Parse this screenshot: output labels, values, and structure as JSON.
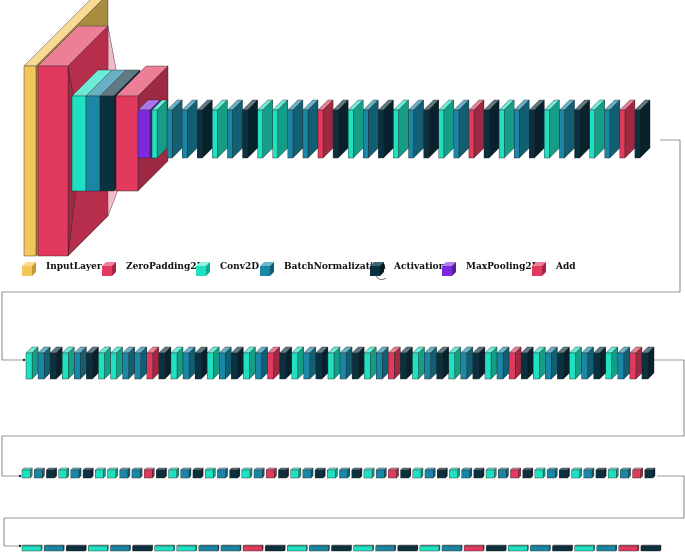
{
  "colors": {
    "InputLayer": "#F2C65A",
    "ZeroPadding2D": "#E23A5E",
    "Conv2D": "#1FE0C0",
    "BatchNormalization": "#1A87A6",
    "Activation": "#0B3140",
    "MaxPooling2D": "#7B2BDB",
    "Add": "#E23A5E"
  },
  "legend": {
    "items": [
      {
        "label": "InputLayer",
        "type": "InputLayer"
      },
      {
        "label": "ZeroPadding2D",
        "type": "ZeroPadding2D"
      },
      {
        "label": "Conv2D",
        "type": "Conv2D"
      },
      {
        "label": "BatchNormalization",
        "type": "BatchNormalization"
      },
      {
        "label": "Activation",
        "type": "Activation"
      },
      {
        "label": "MaxPooling2D",
        "type": "MaxPooling2D"
      },
      {
        "label": "Add",
        "type": "Add"
      }
    ]
  },
  "rows": [
    {
      "name": "row-1",
      "pattern": [
        "Conv2D",
        "BatchNormalization",
        "BatchNormalization",
        "Activation",
        "Conv2D",
        "BatchNormalization",
        "Activation",
        "Conv2D",
        "Conv2D",
        "BatchNormalization",
        "BatchNormalization",
        "Add",
        "Activation",
        "Conv2D",
        "BatchNormalization",
        "Activation",
        "Conv2D",
        "BatchNormalization",
        "Activation",
        "Conv2D",
        "BatchNormalization",
        "Add",
        "Activation",
        "Conv2D",
        "BatchNormalization",
        "Activation",
        "Conv2D",
        "BatchNormalization",
        "Activation",
        "Conv2D",
        "BatchNormalization",
        "Add",
        "Activation"
      ]
    },
    {
      "name": "row-2",
      "pattern": [
        "Conv2D",
        "BatchNormalization",
        "Activation",
        "Conv2D",
        "BatchNormalization",
        "Activation",
        "Conv2D",
        "Conv2D",
        "BatchNormalization",
        "BatchNormalization",
        "Add",
        "Activation",
        "Conv2D",
        "BatchNormalization",
        "Activation",
        "Conv2D",
        "BatchNormalization",
        "Activation",
        "Conv2D",
        "BatchNormalization",
        "Add",
        "Activation",
        "Conv2D",
        "BatchNormalization",
        "Activation",
        "Conv2D",
        "BatchNormalization",
        "Activation",
        "Conv2D",
        "BatchNormalization",
        "Add",
        "Activation",
        "Conv2D",
        "BatchNormalization",
        "Activation",
        "Conv2D",
        "BatchNormalization",
        "Activation",
        "Conv2D",
        "BatchNormalization",
        "Add",
        "Activation",
        "Conv2D",
        "BatchNormalization",
        "Activation",
        "Conv2D",
        "BatchNormalization",
        "Activation",
        "Conv2D",
        "BatchNormalization",
        "Add",
        "Activation"
      ]
    },
    {
      "name": "row-3",
      "pattern": [
        "Conv2D",
        "BatchNormalization",
        "Activation",
        "Conv2D",
        "BatchNormalization",
        "Activation",
        "Conv2D",
        "Conv2D",
        "BatchNormalization",
        "BatchNormalization",
        "Add",
        "Activation",
        "Conv2D",
        "BatchNormalization",
        "Activation",
        "Conv2D",
        "BatchNormalization",
        "Activation",
        "Conv2D",
        "BatchNormalization",
        "Add",
        "Activation",
        "Conv2D",
        "BatchNormalization",
        "Activation",
        "Conv2D",
        "BatchNormalization",
        "Activation",
        "Conv2D",
        "BatchNormalization",
        "Add",
        "Activation",
        "Conv2D",
        "BatchNormalization",
        "Activation",
        "Conv2D",
        "BatchNormalization",
        "Activation",
        "Conv2D",
        "BatchNormalization",
        "Add",
        "Activation",
        "Conv2D",
        "BatchNormalization",
        "Activation",
        "Conv2D",
        "BatchNormalization",
        "Activation",
        "Conv2D",
        "BatchNormalization",
        "Add",
        "Activation"
      ]
    },
    {
      "name": "row-4",
      "pattern": [
        "Conv2D",
        "BatchNormalization",
        "Activation",
        "Conv2D",
        "BatchNormalization",
        "Activation",
        "Conv2D",
        "Conv2D",
        "BatchNormalization",
        "BatchNormalization",
        "Add",
        "Activation",
        "Conv2D",
        "BatchNormalization",
        "Activation",
        "Conv2D",
        "BatchNormalization",
        "Activation",
        "Conv2D",
        "BatchNormalization",
        "Add",
        "Activation",
        "Conv2D",
        "BatchNormalization",
        "Activation",
        "Conv2D",
        "BatchNormalization",
        "Add",
        "Activation"
      ]
    }
  ]
}
